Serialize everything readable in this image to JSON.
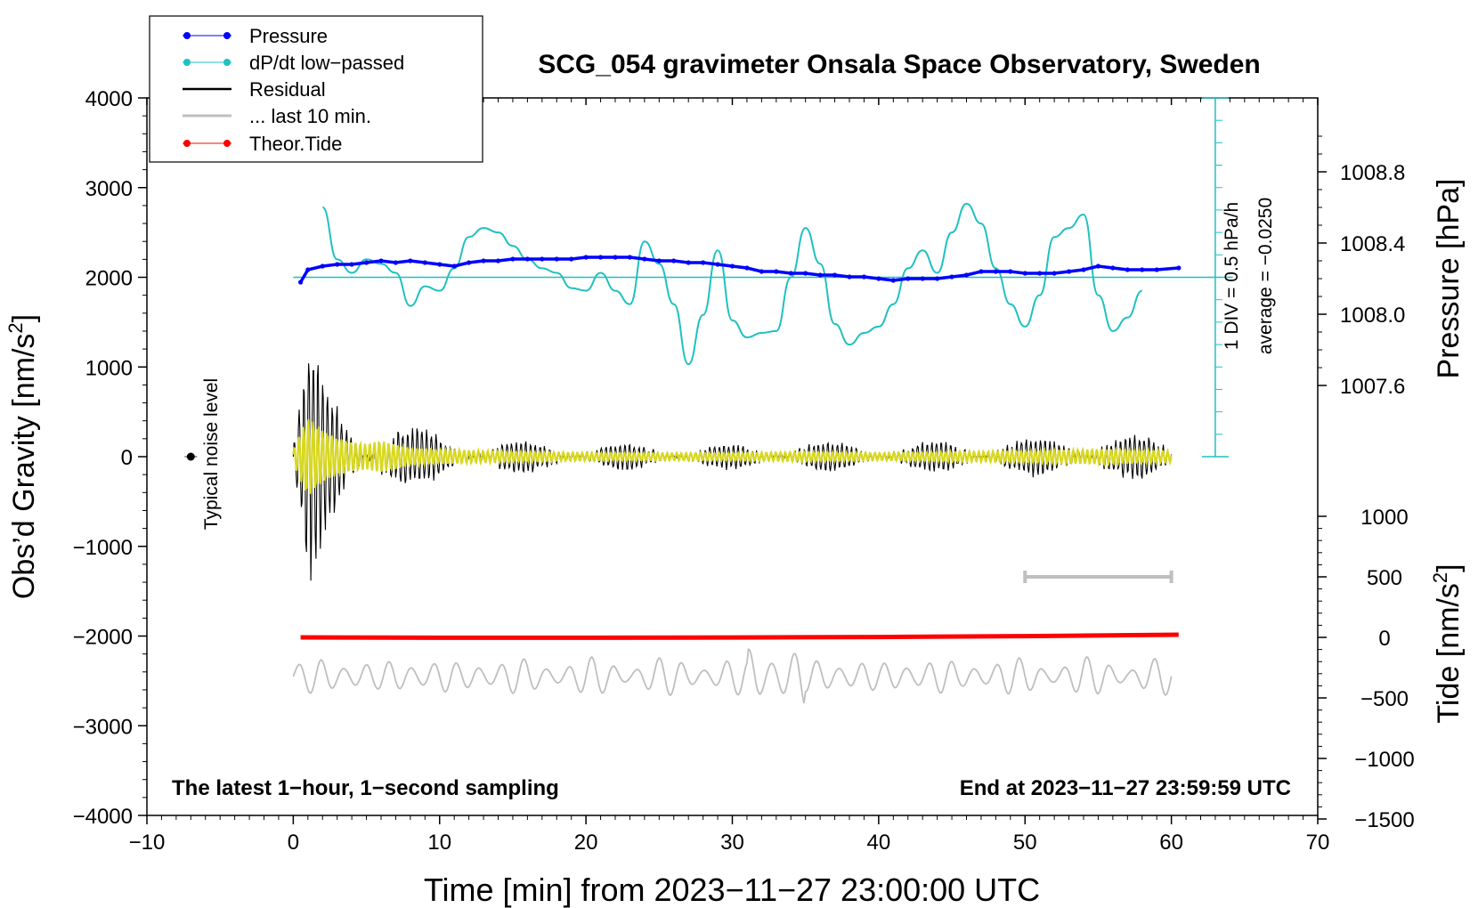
{
  "chart_data": {
    "type": "line",
    "title": "SCG_054 gravimeter Onsala Space Observatory, Sweden",
    "xlabel": "Time [min] from 2023−11−27 23:00:00 UTC",
    "ylabel_left_main": "Obs’d Gravity [nm/s",
    "ylabel_left_sup": "2",
    "ylabel_left_end": "]",
    "ylabel_right_pressure": "Pressure [hPa]",
    "ylabel_right_tide_main": "Tide [nm/s",
    "ylabel_right_tide_sup": "2",
    "ylabel_right_tide_end": "]",
    "xlim": [
      -10,
      70
    ],
    "ylim": [
      -4000,
      4000
    ],
    "x_ticks": [
      "−10",
      "0",
      "10",
      "20",
      "30",
      "40",
      "50",
      "60",
      "70"
    ],
    "y_ticks": [
      "−4000",
      "−3000",
      "−2000",
      "−1000",
      "0",
      "1000",
      "2000",
      "3000",
      "4000"
    ],
    "pressure_ticks": [
      "1007.6",
      "1008.0",
      "1008.4",
      "1008.8"
    ],
    "pressure_tick_values": [
      1007.6,
      1008.0,
      1008.4,
      1008.8
    ],
    "tide_ticks": [
      "−1500",
      "−1000",
      "−500",
      "0",
      "500",
      "1000"
    ],
    "tide_tick_values": [
      -1500,
      -1000,
      -500,
      0,
      500,
      1000
    ],
    "dpdt_scale_label": "1 DIV = 0.5 hPa/h",
    "dpdt_average_label": "average = −0.0250",
    "noise_label": "Typical noise level",
    "bottom_left_note": "The latest 1−hour, 1−second sampling",
    "bottom_right_note": "End at 2023−11−27 23:59:59 UTC",
    "legend": [
      "Pressure",
      "dP/dt low−passed",
      "Residual",
      "... last 10 min.",
      "Theor.Tide"
    ],
    "colors": {
      "pressure": "#0000ff",
      "dpdt": "#20c0c0",
      "residual": "#000000",
      "residual_fill": "#d8d820",
      "last10": "#bfbfbf",
      "tide": "#ff0000"
    },
    "pressure_series": {
      "x": [
        0.5,
        1,
        2,
        3,
        4,
        5,
        6,
        7,
        8,
        9,
        10,
        11,
        12,
        13,
        14,
        15,
        16,
        17,
        18,
        19,
        20,
        21,
        22,
        23,
        24,
        25,
        26,
        27,
        28,
        29,
        30,
        31,
        32,
        33,
        34,
        35,
        36,
        37,
        38,
        39,
        40,
        41,
        42,
        43,
        44,
        45,
        46,
        47,
        48,
        49,
        50,
        51,
        52,
        53,
        54,
        55,
        56,
        57,
        58,
        59,
        60.5
      ],
      "y": [
        1008.18,
        1008.25,
        1008.27,
        1008.28,
        1008.28,
        1008.29,
        1008.3,
        1008.29,
        1008.3,
        1008.29,
        1008.28,
        1008.27,
        1008.29,
        1008.3,
        1008.3,
        1008.31,
        1008.31,
        1008.31,
        1008.31,
        1008.31,
        1008.32,
        1008.32,
        1008.32,
        1008.32,
        1008.31,
        1008.3,
        1008.3,
        1008.29,
        1008.29,
        1008.28,
        1008.27,
        1008.26,
        1008.24,
        1008.24,
        1008.23,
        1008.23,
        1008.22,
        1008.22,
        1008.21,
        1008.21,
        1008.2,
        1008.19,
        1008.2,
        1008.2,
        1008.2,
        1008.21,
        1008.22,
        1008.24,
        1008.24,
        1008.24,
        1008.23,
        1008.23,
        1008.23,
        1008.24,
        1008.25,
        1008.27,
        1008.26,
        1008.25,
        1008.25,
        1008.25,
        1008.26
      ]
    },
    "dpdt_series": {
      "x": [
        2,
        3,
        4,
        5,
        6,
        7,
        8,
        9,
        10,
        11,
        12,
        13,
        14,
        15,
        16,
        17,
        18,
        19,
        20,
        21,
        22,
        23,
        24,
        25,
        26,
        27,
        28,
        29,
        30,
        31,
        32,
        33,
        34,
        35,
        36,
        37,
        38,
        39,
        40,
        41,
        42,
        43,
        44,
        45,
        46,
        47,
        48,
        49,
        50,
        51,
        52,
        53,
        54,
        55,
        56,
        57,
        58
      ],
      "y": [
        2780,
        2200,
        2050,
        2200,
        2150,
        2050,
        1680,
        1900,
        1850,
        2100,
        2450,
        2550,
        2500,
        2350,
        2200,
        2100,
        2050,
        1880,
        1850,
        2050,
        1850,
        1700,
        2400,
        2150,
        1700,
        1030,
        1580,
        2300,
        1520,
        1330,
        1380,
        1400,
        2000,
        2550,
        2150,
        1480,
        1250,
        1380,
        1450,
        1700,
        2100,
        2300,
        2050,
        2500,
        2820,
        2600,
        2100,
        1700,
        1450,
        1800,
        2450,
        2550,
        2700,
        1800,
        1400,
        1550,
        1850
      ]
    },
    "residual_envelope": {
      "x": [
        0,
        1,
        2,
        3,
        4,
        5,
        6,
        8,
        10,
        15,
        20,
        25,
        30,
        35,
        40,
        45,
        50,
        55,
        60
      ],
      "amplitude": [
        250,
        1400,
        900,
        650,
        500,
        450,
        550,
        300,
        250,
        180,
        140,
        130,
        130,
        170,
        130,
        170,
        200,
        260,
        200
      ]
    },
    "tide_series": {
      "x": [
        0.5,
        10,
        20,
        30,
        40,
        50,
        60.5
      ],
      "y": [
        0,
        -3,
        -3,
        -1,
        3,
        10,
        22
      ]
    },
    "last10_bar": {
      "x": [
        50,
        60
      ],
      "tide_y": 500
    },
    "noise_point": {
      "x": -7,
      "y": 0
    }
  }
}
